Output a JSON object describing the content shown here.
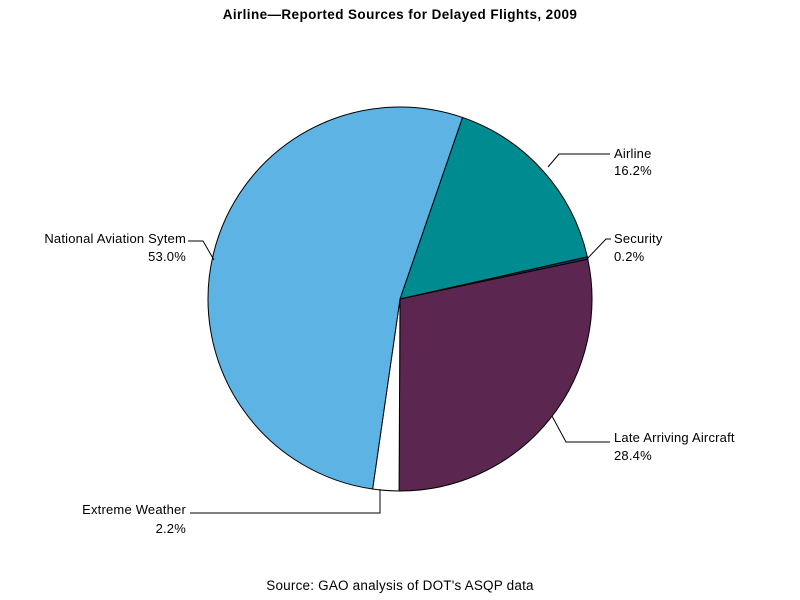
{
  "title": "Airline—Reported Sources for Delayed Flights, 2009",
  "source_note": "Source: GAO analysis of DOT's ASQP data",
  "chart_data": {
    "type": "pie",
    "title": "Airline—Reported Sources for Delayed Flights, 2009",
    "source_note": "Source: GAO analysis of DOT's ASQP data",
    "direction": "clockwise",
    "start_angle_deg_cw_from_north": 19,
    "legend_position": "none",
    "labels_style": "outside-with-leader-lines",
    "background": "#FFFFFF",
    "slices": [
      {
        "label": "Airline",
        "value": 16.2,
        "pct_label": "16.2%",
        "color": "#008B90"
      },
      {
        "label": "Security",
        "value": 0.2,
        "pct_label": "0.2%",
        "color": "#1F3C70"
      },
      {
        "label": "Late Arriving Aircraft",
        "value": 28.4,
        "pct_label": "28.4%",
        "color": "#5B2750"
      },
      {
        "label": "Extreme Weather",
        "value": 2.2,
        "pct_label": "2.2%",
        "color": "#FFFFFF"
      },
      {
        "label": "National Aviation Sytem",
        "value": 53.0,
        "pct_label": "53.0%",
        "color": "#5CB3E4"
      }
    ]
  }
}
